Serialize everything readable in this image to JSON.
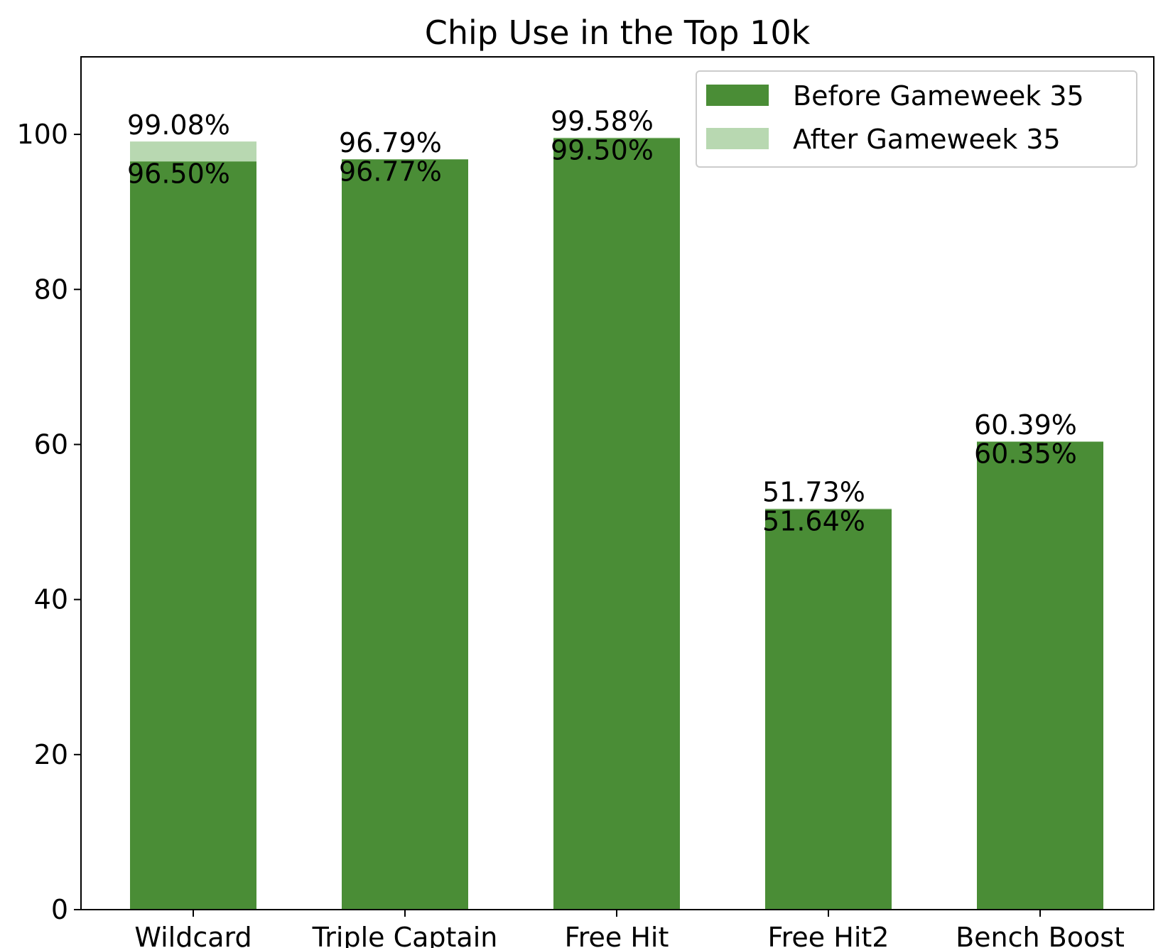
{
  "chart_data": {
    "type": "bar",
    "title": "Chip Use in the Top 10k",
    "xlabel": "",
    "ylabel": "",
    "categories": [
      "Wildcard",
      "Triple Captain",
      "Free Hit",
      "Free Hit2",
      "Bench Boost"
    ],
    "series": [
      {
        "name": "Before Gameweek 35",
        "values": [
          96.5,
          96.77,
          99.5,
          51.64,
          60.35
        ],
        "labels": [
          "96.50%",
          "96.77%",
          "99.50%",
          "51.64%",
          "60.35%"
        ],
        "color": "#4a8d36"
      },
      {
        "name": "After Gameweek 35",
        "values": [
          99.08,
          96.79,
          99.58,
          51.73,
          60.39
        ],
        "labels": [
          "99.08%",
          "96.79%",
          "99.58%",
          "51.73%",
          "60.39%"
        ],
        "color": "#b8d8b1"
      }
    ],
    "ylim": [
      0,
      110
    ],
    "yticks": [
      0,
      20,
      40,
      60,
      80,
      100
    ],
    "grid": false,
    "legend_position": "top-right"
  }
}
